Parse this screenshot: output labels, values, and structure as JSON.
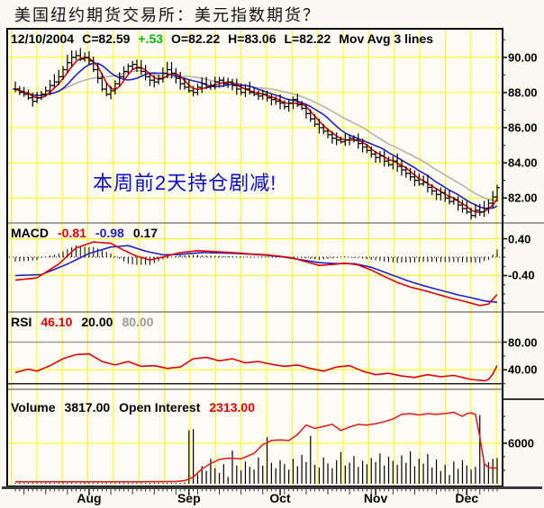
{
  "window": {
    "title": "美国纽约期货交易所：美元指数期货？"
  },
  "info_bar": {
    "date": "12/10/2004",
    "close": "C=82.59",
    "change": "+.53",
    "open": "O=82.22",
    "high": "H=83.06",
    "low": "L=82.22",
    "mov_avg": "Mov Avg 3 lines"
  },
  "annotation": {
    "text": "本周前2天持仓剧减!",
    "color": "#0a0ad0"
  },
  "indicator_labels": {
    "macd": {
      "name": "MACD",
      "fast": "-0.81",
      "slow": "-0.98",
      "hist": "0.17",
      "fast_color": "#e00000",
      "slow_color": "#2020cc",
      "hist_color": "#000000"
    },
    "rsi": {
      "name": "RSI",
      "value": "46.10",
      "low": "20.00",
      "high": "80.00",
      "value_color": "#e00000",
      "low_color": "#000000",
      "high_color": "#9a9a9a"
    },
    "volume": {
      "name": "Volume",
      "value": "3817.00",
      "oi_name": "Open Interest",
      "oi_value": "2313.00",
      "oi_color": "#e00000"
    }
  },
  "colors": {
    "grid_yellow": "#ffff00",
    "line_red": "#e00000",
    "line_blue": "#2020cc",
    "line_gray": "#b2b2b2",
    "bars_black": "#000000",
    "change_green": "#00bb00",
    "annotation_blue": "#0a0ad0",
    "rsi_over_gray": "#9a9a9a",
    "rsi_under_black": "#222222",
    "plot_bg": "#fdfcf4",
    "page_bg": "#fbfaf2"
  },
  "chart_data": [
    {
      "id": "price",
      "type": "ohlc",
      "title": "US Dollar Index futures, daily",
      "n": 112,
      "closes": [
        88.2,
        88.0,
        87.9,
        87.7,
        87.5,
        87.7,
        87.9,
        88.1,
        88.4,
        88.6,
        88.9,
        89.3,
        89.7,
        90.0,
        90.1,
        89.9,
        90.0,
        89.8,
        89.3,
        88.8,
        88.2,
        87.9,
        88.1,
        88.5,
        88.9,
        89.2,
        89.5,
        89.6,
        89.4,
        89.2,
        88.9,
        88.7,
        88.6,
        88.8,
        89.1,
        89.3,
        89.1,
        88.8,
        88.5,
        88.3,
        88.1,
        88.0,
        88.3,
        88.5,
        88.3,
        88.4,
        88.6,
        88.7,
        88.5,
        88.6,
        88.4,
        88.2,
        88.0,
        88.2,
        88.0,
        87.9,
        87.8,
        87.9,
        87.7,
        87.6,
        87.5,
        87.4,
        87.2,
        87.4,
        87.6,
        87.3,
        87.1,
        86.8,
        86.5,
        86.2,
        86.0,
        85.8,
        85.6,
        85.4,
        85.3,
        85.2,
        85.3,
        85.4,
        85.3,
        85.1,
        84.9,
        84.7,
        84.5,
        84.3,
        84.4,
        84.1,
        83.9,
        84.1,
        83.8,
        83.6,
        83.4,
        83.2,
        83.0,
        82.8,
        82.9,
        82.6,
        82.4,
        82.2,
        82.3,
        82.0,
        81.8,
        81.9,
        81.6,
        81.4,
        81.2,
        81.0,
        81.3,
        81.2,
        81.4,
        81.7,
        82.06,
        82.59
      ],
      "mov_avg_periods": [
        4,
        9,
        18
      ],
      "mov_avg_colors": [
        "#e00000",
        "#2020cc",
        "#b2b2b2"
      ],
      "months": [
        {
          "label": "Aug",
          "i": 17
        },
        {
          "label": "Sep",
          "i": 40
        },
        {
          "label": "Oct",
          "i": 61
        },
        {
          "label": "Nov",
          "i": 83
        },
        {
          "label": "Dec",
          "i": 104
        }
      ],
      "yaxis": {
        "labels": [
          {
            "text": "90.00",
            "value": 90
          },
          {
            "text": "88.00",
            "value": 88
          },
          {
            "text": "86.00",
            "value": 86
          },
          {
            "text": "84.00",
            "value": 84
          },
          {
            "text": "82.00",
            "value": 82
          }
        ],
        "minor": [
          91,
          89,
          87,
          85,
          83,
          81
        ],
        "grid_values": [
          90,
          88,
          86,
          84,
          82
        ]
      }
    },
    {
      "id": "macd",
      "type": "line",
      "title": "MACD",
      "series": [
        {
          "name": "macd_fast",
          "color": "#e00000",
          "points": [
            [
              0,
              -0.5
            ],
            [
              5,
              -0.45
            ],
            [
              10,
              -0.15
            ],
            [
              14,
              0.2
            ],
            [
              18,
              0.33
            ],
            [
              22,
              0.3
            ],
            [
              25,
              0.15
            ],
            [
              28,
              0.02
            ],
            [
              31,
              -0.06
            ],
            [
              34,
              0.0
            ],
            [
              38,
              0.1
            ],
            [
              42,
              0.14
            ],
            [
              46,
              0.12
            ],
            [
              50,
              0.1
            ],
            [
              54,
              0.07
            ],
            [
              58,
              0.05
            ],
            [
              61,
              0.02
            ],
            [
              64,
              -0.02
            ],
            [
              67,
              -0.1
            ],
            [
              70,
              -0.18
            ],
            [
              73,
              -0.16
            ],
            [
              76,
              -0.13
            ],
            [
              79,
              -0.17
            ],
            [
              82,
              -0.28
            ],
            [
              85,
              -0.42
            ],
            [
              88,
              -0.55
            ],
            [
              91,
              -0.65
            ],
            [
              94,
              -0.72
            ],
            [
              97,
              -0.8
            ],
            [
              100,
              -0.88
            ],
            [
              103,
              -0.95
            ],
            [
              105,
              -1.0
            ],
            [
              107,
              -1.05
            ],
            [
              109,
              -1.02
            ],
            [
              111,
              -0.81
            ]
          ]
        },
        {
          "name": "macd_signal",
          "color": "#2020cc",
          "points": [
            [
              0,
              -0.4
            ],
            [
              6,
              -0.38
            ],
            [
              12,
              -0.15
            ],
            [
              17,
              0.08
            ],
            [
              22,
              0.22
            ],
            [
              26,
              0.25
            ],
            [
              30,
              0.13
            ],
            [
              34,
              0.05
            ],
            [
              38,
              0.06
            ],
            [
              43,
              0.1
            ],
            [
              48,
              0.09
            ],
            [
              53,
              0.07
            ],
            [
              58,
              0.04
            ],
            [
              62,
              0.0
            ],
            [
              66,
              -0.06
            ],
            [
              70,
              -0.12
            ],
            [
              74,
              -0.14
            ],
            [
              78,
              -0.14
            ],
            [
              82,
              -0.22
            ],
            [
              86,
              -0.36
            ],
            [
              90,
              -0.5
            ],
            [
              94,
              -0.62
            ],
            [
              98,
              -0.72
            ],
            [
              102,
              -0.82
            ],
            [
              105,
              -0.88
            ],
            [
              108,
              -0.95
            ],
            [
              111,
              -0.98
            ]
          ]
        }
      ],
      "histogram": "fast_minus_signal",
      "zero_line": "dotted",
      "yaxis": {
        "labels": [
          {
            "text": "0.40",
            "value": 0.4
          },
          {
            "text": "-0.40",
            "value": -0.4
          }
        ],
        "minor": [
          0.2,
          0.0,
          -0.2,
          -0.6,
          -0.8,
          -1.0
        ],
        "grid_values": [
          0.4,
          -0.4
        ]
      }
    },
    {
      "id": "rsi",
      "type": "line",
      "title": "RSI",
      "series": [
        {
          "name": "rsi",
          "color": "#e00000",
          "points": [
            [
              0,
              36
            ],
            [
              3,
              41
            ],
            [
              5,
              38
            ],
            [
              8,
              46
            ],
            [
              11,
              56
            ],
            [
              14,
              62
            ],
            [
              17,
              63
            ],
            [
              20,
              52
            ],
            [
              23,
              47
            ],
            [
              26,
              52
            ],
            [
              29,
              45
            ],
            [
              32,
              46
            ],
            [
              35,
              42
            ],
            [
              38,
              44
            ],
            [
              41,
              56
            ],
            [
              44,
              58
            ],
            [
              47,
              53
            ],
            [
              50,
              56
            ],
            [
              53,
              50
            ],
            [
              56,
              52
            ],
            [
              59,
              48
            ],
            [
              62,
              45
            ],
            [
              65,
              47
            ],
            [
              68,
              42
            ],
            [
              71,
              38
            ],
            [
              74,
              44
            ],
            [
              77,
              46
            ],
            [
              80,
              38
            ],
            [
              83,
              33
            ],
            [
              86,
              35
            ],
            [
              89,
              31
            ],
            [
              92,
              29
            ],
            [
              95,
              33
            ],
            [
              98,
              30
            ],
            [
              101,
              32
            ],
            [
              103,
              29
            ],
            [
              105,
              26
            ],
            [
              107,
              25
            ],
            [
              108,
              24
            ],
            [
              109,
              26
            ],
            [
              110,
              34
            ],
            [
              111,
              46.1
            ]
          ]
        }
      ],
      "overbought_level": 80,
      "oversold_level": 20,
      "yaxis": {
        "labels": [
          {
            "text": "80.00",
            "value": 80
          },
          {
            "text": "40.00",
            "value": 40
          }
        ],
        "minor": [
          60,
          20
        ],
        "grid_values": [
          40
        ]
      }
    },
    {
      "id": "volume",
      "type": "bar+line",
      "title": "Volume and Open Interest",
      "volumes": [
        120,
        150,
        100,
        130,
        160,
        140,
        110,
        150,
        130,
        120,
        140,
        160,
        130,
        150,
        120,
        140,
        160,
        150,
        130,
        140,
        120,
        150,
        140,
        130,
        160,
        140,
        150,
        130,
        140,
        150,
        130,
        120,
        150,
        140,
        130,
        150,
        140,
        130,
        140,
        200,
        7900,
        8100,
        1400,
        2600,
        1900,
        3700,
        2300,
        1600,
        2900,
        1000,
        4900,
        2700,
        2000,
        3300,
        2500,
        2100,
        3900,
        2700,
        6900,
        3100,
        2300,
        3500,
        2900,
        2100,
        3700,
        2600,
        4300,
        3200,
        7100,
        2800,
        2400,
        3900,
        3000,
        2300,
        3500,
        4700,
        2700,
        3100,
        4100,
        2500,
        3400,
        2900,
        3800,
        3200,
        4500,
        2700,
        4000,
        3400,
        2800,
        4200,
        3100,
        4800,
        2600,
        3700,
        3000,
        4400,
        2400,
        3600,
        1900,
        2800,
        1300,
        3300,
        2200,
        3500,
        2700,
        2100,
        2500,
        10200,
        3400,
        3200,
        3700,
        3817
      ],
      "open_interest": {
        "name": "open_interest",
        "color": "#e02020",
        "points": [
          [
            0,
            300
          ],
          [
            30,
            300
          ],
          [
            37,
            320
          ],
          [
            39,
            450
          ],
          [
            41,
            1000
          ],
          [
            43,
            2200
          ],
          [
            45,
            3000
          ],
          [
            47,
            3600
          ],
          [
            49,
            3800
          ],
          [
            52,
            3700
          ],
          [
            55,
            4500
          ],
          [
            57,
            5800
          ],
          [
            59,
            6400
          ],
          [
            61,
            6500
          ],
          [
            63,
            6400
          ],
          [
            65,
            7300
          ],
          [
            67,
            8700
          ],
          [
            69,
            8200
          ],
          [
            71,
            8500
          ],
          [
            73,
            8800
          ],
          [
            75,
            7900
          ],
          [
            77,
            8400
          ],
          [
            79,
            8800
          ],
          [
            81,
            8700
          ],
          [
            83,
            8900
          ],
          [
            85,
            9200
          ],
          [
            87,
            9600
          ],
          [
            89,
            10300
          ],
          [
            91,
            10400
          ],
          [
            93,
            10200
          ],
          [
            95,
            10400
          ],
          [
            97,
            10300
          ],
          [
            99,
            10400
          ],
          [
            101,
            10600
          ],
          [
            103,
            10000
          ],
          [
            104,
            10400
          ],
          [
            105,
            10500
          ],
          [
            106,
            10300
          ],
          [
            107,
            7000
          ],
          [
            108,
            3000
          ],
          [
            109,
            2400
          ],
          [
            110,
            2350
          ],
          [
            111,
            2313
          ]
        ]
      },
      "yaxis": {
        "labels": [
          {
            "text": "6000",
            "value": 6000
          }
        ],
        "minor": [
          2000,
          4000,
          8000,
          10000
        ],
        "grid_values": [
          6000
        ]
      }
    }
  ]
}
